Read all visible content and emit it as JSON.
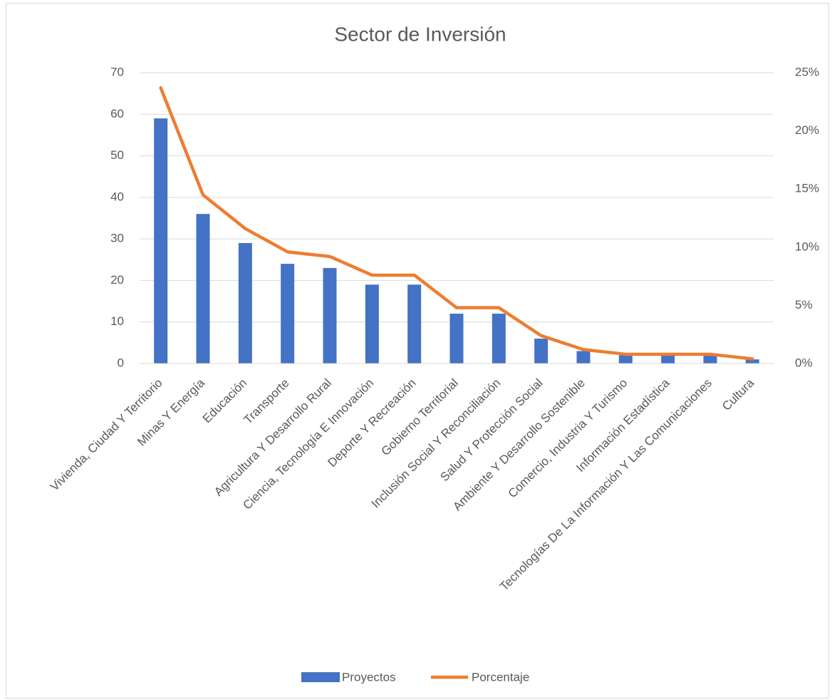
{
  "chart_data": {
    "type": "bar",
    "title": "Sector de Inversión",
    "categories": [
      "Vivienda, Ciudad Y Territorio",
      "Minas Y Energía",
      "Educación",
      "Transporte",
      "Agricultura Y Desarrollo Rural",
      "Ciencia, Tecnología E Innovación",
      "Deporte Y Recreación",
      "Gobierno Territorial",
      "Inclusión Social Y Reconciliación",
      "Salud Y Protección Social",
      "Ambiente Y Desarrollo Sostenible",
      "Comercio, Industria Y Turismo",
      "Información Estadística",
      "Tecnologías De La Información Y Las Comunicaciones",
      "Cultura"
    ],
    "series": [
      {
        "name": "Proyectos",
        "type": "bar",
        "color": "#4472c4",
        "values": [
          59,
          36,
          29,
          24,
          23,
          19,
          19,
          12,
          12,
          6,
          3,
          2,
          2,
          2,
          1
        ]
      },
      {
        "name": "Porcentaje",
        "type": "line",
        "axis": "y2",
        "color": "#ed7d31",
        "values": [
          23.7,
          14.5,
          11.6,
          9.6,
          9.2,
          7.6,
          7.6,
          4.8,
          4.8,
          2.4,
          1.2,
          0.8,
          0.8,
          0.8,
          0.4
        ]
      }
    ],
    "ylim": [
      0,
      70
    ],
    "yticks": [
      0,
      10,
      20,
      30,
      40,
      50,
      60,
      70
    ],
    "y2lim": [
      0,
      25
    ],
    "y2ticks": [
      {
        "value": 0,
        "label": "0%"
      },
      {
        "value": 5,
        "label": "5%"
      },
      {
        "value": 10,
        "label": "10%"
      },
      {
        "value": 15,
        "label": "15%"
      },
      {
        "value": 20,
        "label": "20%"
      },
      {
        "value": 25,
        "label": "25%"
      }
    ],
    "grid": true,
    "legend": "bottom"
  }
}
